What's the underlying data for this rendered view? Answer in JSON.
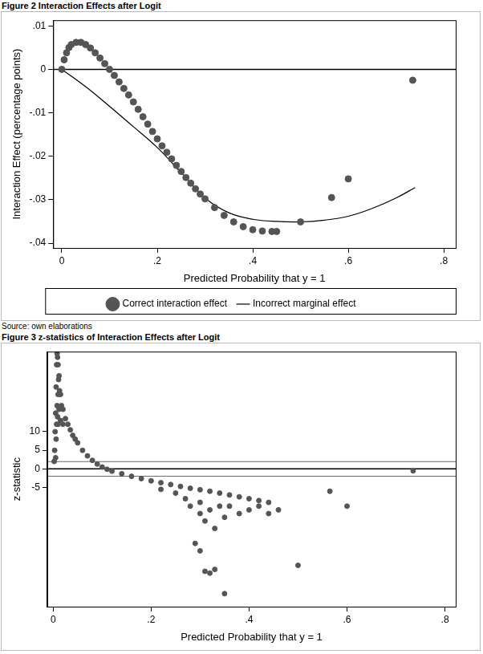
{
  "chart_data": [
    {
      "type": "scatter",
      "title": "Figure 2 Interaction Effects after Logit",
      "note": "Source: own elaborations",
      "x_label": "Predicted Probability that y = 1",
      "y_label": "Interaction Effect (percentage points)",
      "xlim": [
        -0.018,
        0.825
      ],
      "xticks": [
        0,
        {
          "value": 0.2,
          "label": ".2"
        },
        {
          "value": 0.4,
          "label": ".4"
        },
        {
          "value": 0.6,
          "label": ".6"
        },
        {
          "value": 0.8,
          "label": ".8"
        }
      ],
      "ylim": [
        -0.0411,
        0.0113
      ],
      "yticks": [
        {
          "value": 0.01,
          "label": ".01"
        },
        0,
        {
          "value": -0.01,
          "label": "-.01"
        },
        {
          "value": -0.02,
          "label": "-.02"
        },
        {
          "value": -0.03,
          "label": "-.03"
        },
        {
          "value": -0.04,
          "label": "-.04"
        }
      ],
      "hlines": [
        0
      ],
      "grid": false,
      "legend": "bottom",
      "series": [
        {
          "name": "Correct interaction effect",
          "type": "scatter",
          "color": "#555555",
          "marker": "circle",
          "x": [
            0,
            0.005,
            0.01,
            0.015,
            0.02,
            0.03,
            0.04,
            0.05,
            0.06,
            0.07,
            0.08,
            0.09,
            0.1,
            0.11,
            0.12,
            0.13,
            0.14,
            0.15,
            0.16,
            0.17,
            0.18,
            0.19,
            0.2,
            0.21,
            0.22,
            0.23,
            0.24,
            0.25,
            0.26,
            0.27,
            0.28,
            0.29,
            0.3,
            0.32,
            0.34,
            0.36,
            0.38,
            0.4,
            0.42,
            0.44,
            0.45,
            0.5,
            0.565,
            0.6,
            0.735
          ],
          "values": [
            0,
            0.0022,
            0.0038,
            0.005,
            0.0057,
            0.0062,
            0.0062,
            0.0057,
            0.0049,
            0.0038,
            0.0026,
            0.0013,
            0,
            -0.0014,
            -0.0029,
            -0.0044,
            -0.0059,
            -0.0075,
            -0.0092,
            -0.0109,
            -0.0126,
            -0.0143,
            -0.016,
            -0.0176,
            -0.0191,
            -0.0206,
            -0.0221,
            -0.0235,
            -0.0249,
            -0.0262,
            -0.0275,
            -0.0287,
            -0.0298,
            -0.0318,
            -0.0336,
            -0.0351,
            -0.0362,
            -0.0369,
            -0.0372,
            -0.0373,
            -0.0373,
            -0.0351,
            -0.0295,
            -0.0252,
            -0.0025
          ]
        },
        {
          "name": "Incorrect marginal effect",
          "type": "line",
          "color": "#000000",
          "marker": "none",
          "line_style": "solid",
          "x": [
            0,
            0.05,
            0.1,
            0.15,
            0.2,
            0.25,
            0.3,
            0.35,
            0.4,
            0.45,
            0.5,
            0.55,
            0.6,
            0.65,
            0.7,
            0.74
          ],
          "values": [
            0,
            -0.004,
            -0.0085,
            -0.0132,
            -0.018,
            -0.0238,
            -0.0296,
            -0.033,
            -0.0345,
            -0.035,
            -0.0351,
            -0.0347,
            -0.0338,
            -0.032,
            -0.0296,
            -0.0272
          ]
        }
      ]
    },
    {
      "type": "scatter",
      "title": "Figure 3 z-statistics of Interaction Effects after Logit",
      "x_label": "Predicted Probability that y = 1",
      "y_label": "z-statistic",
      "xlim": [
        -0.012,
        0.822
      ],
      "xticks": [
        0,
        {
          "value": 0.2,
          "label": ".2"
        },
        {
          "value": 0.4,
          "label": ".4"
        },
        {
          "value": 0.6,
          "label": ".6"
        },
        {
          "value": 0.8,
          "label": ".8"
        }
      ],
      "ylim": [
        -37,
        31.5
      ],
      "yticks": [
        10,
        5,
        0,
        -5
      ],
      "hlines": [
        1.96,
        0,
        -1.96
      ],
      "grid": false,
      "color": "#555555",
      "marker": "circle",
      "x": [
        0.002,
        0.003,
        0.004,
        0.005,
        0.005,
        0.006,
        0.006,
        0.007,
        0.007,
        0.008,
        0.008,
        0.009,
        0.009,
        0.01,
        0.01,
        0.01,
        0.011,
        0.012,
        0.012,
        0.013,
        0.015,
        0.015,
        0.017,
        0.02,
        0.02,
        0.025,
        0.03,
        0.035,
        0.04,
        0.045,
        0.05,
        0.06,
        0.07,
        0.08,
        0.09,
        0.1,
        0.11,
        0.12,
        0.14,
        0.16,
        0.18,
        0.2,
        0.22,
        0.22,
        0.24,
        0.25,
        0.26,
        0.27,
        0.28,
        0.28,
        0.29,
        0.3,
        0.3,
        0.3,
        0.3,
        0.31,
        0.31,
        0.32,
        0.32,
        0.32,
        0.33,
        0.33,
        0.34,
        0.34,
        0.35,
        0.35,
        0.36,
        0.36,
        0.38,
        0.38,
        0.4,
        0.4,
        0.42,
        0.42,
        0.44,
        0.44,
        0.46,
        0.5,
        0.565,
        0.6,
        0.735
      ],
      "values": [
        2,
        5,
        10,
        3,
        15,
        8,
        22,
        12,
        28,
        17,
        31,
        14,
        30,
        28,
        20,
        12,
        24,
        25,
        16,
        21,
        20,
        13,
        17,
        16,
        12,
        13.5,
        12,
        10.5,
        9,
        8,
        7,
        5,
        3.5,
        2.3,
        1.3,
        0.5,
        -0.1,
        -0.6,
        -1.3,
        -2,
        -2.6,
        -3.2,
        -3.7,
        -5.5,
        -4.2,
        -6.5,
        -4.7,
        -8,
        -5.2,
        -10,
        -20,
        -5.6,
        -9,
        -12,
        -22,
        -14,
        -27.5,
        -6,
        -11,
        -28,
        -16,
        -27,
        -6.5,
        -10,
        -13,
        -33.5,
        -7,
        -10,
        -7.5,
        -12,
        -8,
        -11,
        -8.5,
        -10,
        -9,
        -12,
        -11,
        -25.9,
        -6,
        -10,
        -0.5
      ]
    }
  ]
}
